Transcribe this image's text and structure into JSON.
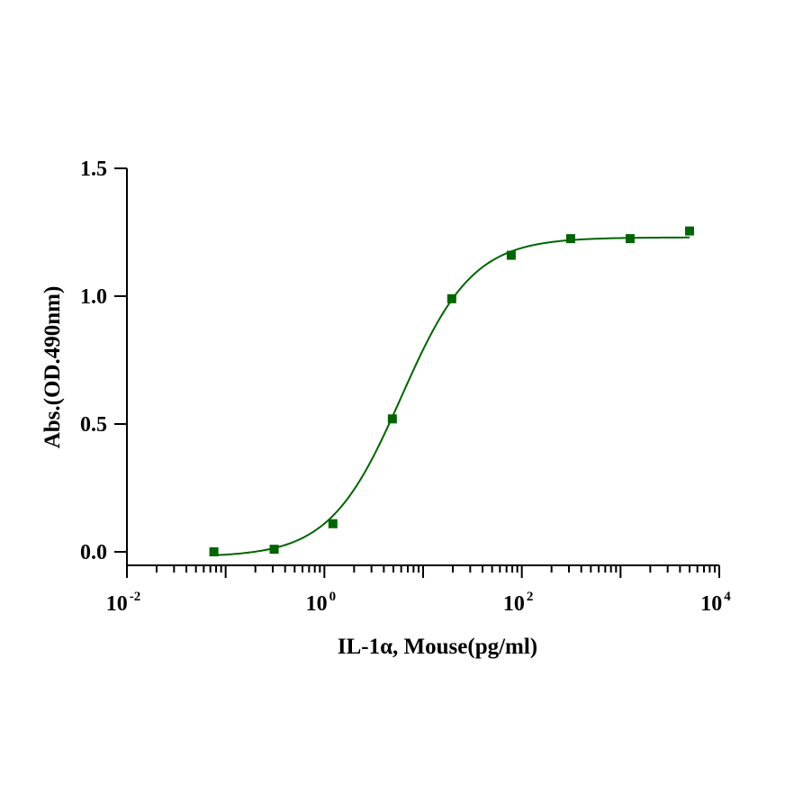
{
  "chart_data": {
    "type": "scatter",
    "xlabel": "IL-1α, Mouse(pg/ml)",
    "ylabel": "Abs.(OD.490nm)",
    "x_scale": "log",
    "xlim": [
      0.01,
      10000
    ],
    "ylim": [
      -0.05,
      1.5
    ],
    "x_tick_base": "10",
    "x_ticks": [
      {
        "value": 0.01,
        "exp": "-2"
      },
      {
        "value": 1,
        "exp": "0"
      },
      {
        "value": 100,
        "exp": "2"
      },
      {
        "value": 10000,
        "exp": "4"
      }
    ],
    "y_ticks": [
      {
        "value": 0.0,
        "label": "0.0"
      },
      {
        "value": 0.5,
        "label": "0.5"
      },
      {
        "value": 1.0,
        "label": "1.0"
      },
      {
        "value": 1.5,
        "label": "1.5"
      }
    ],
    "grid": false,
    "legend": "none",
    "series": [
      {
        "color": "#006400",
        "marker": "square",
        "x": [
          0.076,
          0.31,
          1.22,
          4.88,
          19.5,
          78.1,
          312.5,
          1250,
          5000
        ],
        "y": [
          0.0,
          0.01,
          0.11,
          0.52,
          0.99,
          1.16,
          1.225,
          1.225,
          1.255
        ]
      }
    ],
    "fit": {
      "type": "4PL",
      "bottom": -0.02,
      "top": 1.23,
      "ec50": 6.0,
      "hill": 1.2,
      "x_range": [
        0.076,
        5000
      ],
      "color": "#006400"
    }
  }
}
